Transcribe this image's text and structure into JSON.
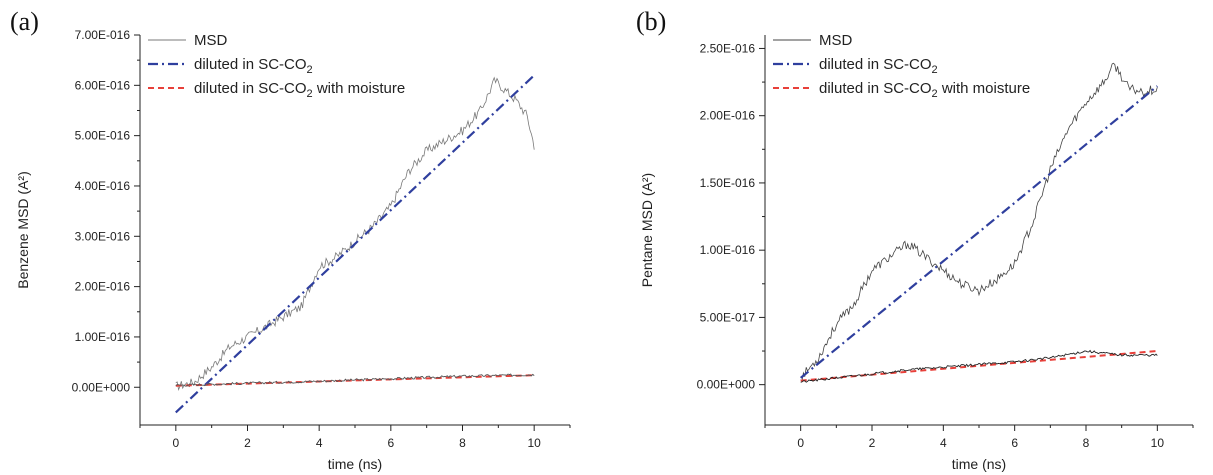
{
  "chart_data": [
    {
      "type": "line",
      "panel_label": "(a)",
      "xlabel": "time (ns)",
      "ylabel": "Benzene MSD (A²)",
      "xlim": [
        -1,
        11
      ],
      "ylim": [
        -7.5e-17,
        7e-16
      ],
      "xticks": [
        0,
        2,
        4,
        6,
        8,
        10
      ],
      "xtick_labels": [
        "0",
        "2",
        "4",
        "6",
        "8",
        "10"
      ],
      "yticks": [
        0,
        1e-16,
        2e-16,
        3e-16,
        4e-16,
        5e-16,
        6e-16,
        7e-16
      ],
      "ytick_labels": [
        "0.00E+000",
        "1.00E-016",
        "2.00E-016",
        "3.00E-016",
        "4.00E-016",
        "5.00E-016",
        "6.00E-016",
        "7.00E-016"
      ],
      "legend_position": "top-left",
      "series": [
        {
          "name": "MSD",
          "style": "solid",
          "color": "#7a7a7a",
          "x": [
            0,
            0.5,
            1.0,
            1.5,
            2.0,
            2.5,
            3.0,
            3.5,
            4.0,
            4.5,
            5.0,
            5.5,
            6.0,
            6.5,
            7.0,
            7.5,
            8.0,
            8.5,
            8.9,
            9.2,
            9.5,
            9.8,
            10.0
          ],
          "y": [
            2e-18,
            1e-17,
            4e-17,
            8e-17,
            1e-16,
            1.2e-16,
            1.4e-16,
            1.6e-16,
            2.4e-16,
            2.6e-16,
            2.9e-16,
            3.2e-16,
            3.6e-16,
            4.3e-16,
            4.7e-16,
            4.9e-16,
            5.1e-16,
            5.5e-16,
            6.1e-16,
            5.9e-16,
            5.7e-16,
            5.4e-16,
            4.8e-16
          ]
        },
        {
          "name": "diluted in SC-CO2",
          "name_base": "diluted in SC-CO",
          "name_sub": "2",
          "style": "dashdot",
          "color": "#2f3f9e",
          "x": [
            0,
            10
          ],
          "y": [
            -5e-17,
            6.2e-16
          ]
        },
        {
          "name": "diluted in SC-CO2 with moisture",
          "name_base": "diluted in SC-CO",
          "name_sub": "2",
          "name_suffix": " with moisture",
          "style": "dashed",
          "color": "#e8403a",
          "x": [
            0,
            10
          ],
          "y": [
            3e-18,
            2.4e-17
          ]
        },
        {
          "name": "MSD (moisture)",
          "style": "solid-thin",
          "color": "#555555",
          "legend": false,
          "x": [
            0,
            2,
            4,
            6,
            8,
            10
          ],
          "y": [
            4e-18,
            8e-18,
            1.2e-17,
            1.7e-17,
            2.2e-17,
            2.5e-17
          ]
        }
      ]
    },
    {
      "type": "line",
      "panel_label": "(b)",
      "xlabel": "time (ns)",
      "ylabel": "Pentane MSD (A²)",
      "xlim": [
        -1,
        11
      ],
      "ylim": [
        -3e-17,
        2.6e-16
      ],
      "xticks": [
        0,
        2,
        4,
        6,
        8,
        10
      ],
      "xtick_labels": [
        "0",
        "2",
        "4",
        "6",
        "8",
        "10"
      ],
      "yticks": [
        0,
        5e-17,
        1e-16,
        1.5e-16,
        2e-16,
        2.5e-16
      ],
      "ytick_labels": [
        "0.00E+000",
        "5.00E-017",
        "1.00E-016",
        "1.50E-016",
        "2.00E-016",
        "2.50E-016"
      ],
      "legend_position": "top-left",
      "series": [
        {
          "name": "MSD",
          "style": "solid",
          "color": "#444444",
          "x": [
            0,
            0.5,
            1.0,
            1.5,
            2.0,
            2.5,
            3.0,
            3.5,
            4.0,
            4.5,
            5.0,
            5.5,
            6.0,
            6.5,
            7.0,
            7.5,
            8.0,
            8.5,
            8.8,
            9.2,
            9.6,
            10.0
          ],
          "y": [
            5e-18,
            2e-17,
            4.5e-17,
            6e-17,
            8.5e-17,
            9.5e-17,
            1.05e-16,
            9.5e-17,
            8.5e-17,
            7.5e-17,
            7e-17,
            7.8e-17,
            9e-17,
            1.2e-16,
            1.6e-16,
            1.9e-16,
            2.1e-16,
            2.25e-16,
            2.38e-16,
            2.2e-16,
            2.18e-16,
            2.2e-16
          ]
        },
        {
          "name": "diluted in SC-CO2",
          "name_base": "diluted in SC-CO",
          "name_sub": "2",
          "style": "dashdot",
          "color": "#2f3f9e",
          "x": [
            0,
            10
          ],
          "y": [
            5e-18,
            2.22e-16
          ]
        },
        {
          "name": "diluted in SC-CO2 with moisture",
          "name_base": "diluted in SC-CO",
          "name_sub": "2",
          "name_suffix": " with moisture",
          "style": "dashed",
          "color": "#e8403a",
          "x": [
            0,
            10
          ],
          "y": [
            3e-18,
            2.5e-17
          ]
        },
        {
          "name": "MSD (moisture)",
          "style": "solid-thin",
          "color": "#222222",
          "legend": false,
          "x": [
            0,
            1,
            2,
            3,
            4,
            5,
            6,
            7,
            8,
            9,
            10
          ],
          "y": [
            2e-18,
            5e-18,
            8e-18,
            1.1e-17,
            1.3e-17,
            1.5e-17,
            1.7e-17,
            2e-17,
            2.5e-17,
            2.2e-17,
            2.2e-17
          ]
        }
      ]
    }
  ]
}
